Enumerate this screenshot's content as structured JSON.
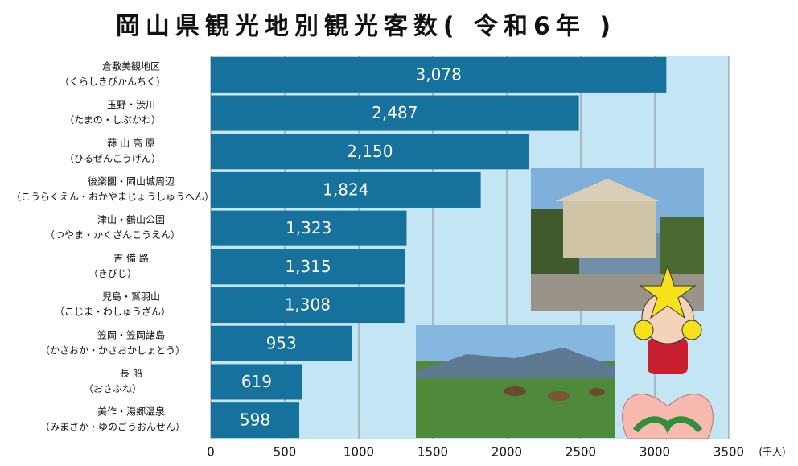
{
  "chart_data": {
    "type": "bar",
    "orientation": "horizontal",
    "title": "岡山県観光地別観光客数( 令和6年 )",
    "unit_label": "(千人)",
    "categories": [
      "倉敷美観地区",
      "玉野・渋川",
      "蒜 山 高 原",
      "後楽園・岡山城周辺",
      "津山・鶴山公園",
      "吉 備 路",
      "児島・鷲羽山",
      "笠岡・笠岡諸島",
      "長 船",
      "美作・湯郷温泉"
    ],
    "category_readings": [
      "（くらしきびかんちく）",
      "（たまの・しぶかわ）",
      "（ひるぜんこうげん）",
      "（こうらくえん・おかやまじょうしゅうへん）",
      "（つやま・かくざんこうえん）",
      "（きびじ）",
      "（こじま・わしゅうざん）",
      "（かさおか・かさおかしょとう）",
      "（おさふね）",
      "（みまさか・ゆのごうおんせん）"
    ],
    "values": [
      3078,
      2487,
      2150,
      1824,
      1323,
      1315,
      1308,
      953,
      619,
      598
    ],
    "value_labels": [
      "3,078",
      "2,487",
      "2,150",
      "1,824",
      "1,323",
      "1,315",
      "1,308",
      "953",
      "619",
      "598"
    ],
    "color": "#16719d",
    "background": "#c4e5f4",
    "xlim": [
      0,
      3500
    ],
    "xticks": [
      0,
      500,
      1000,
      1500,
      2000,
      2500,
      3000,
      3500
    ],
    "grid": true
  }
}
